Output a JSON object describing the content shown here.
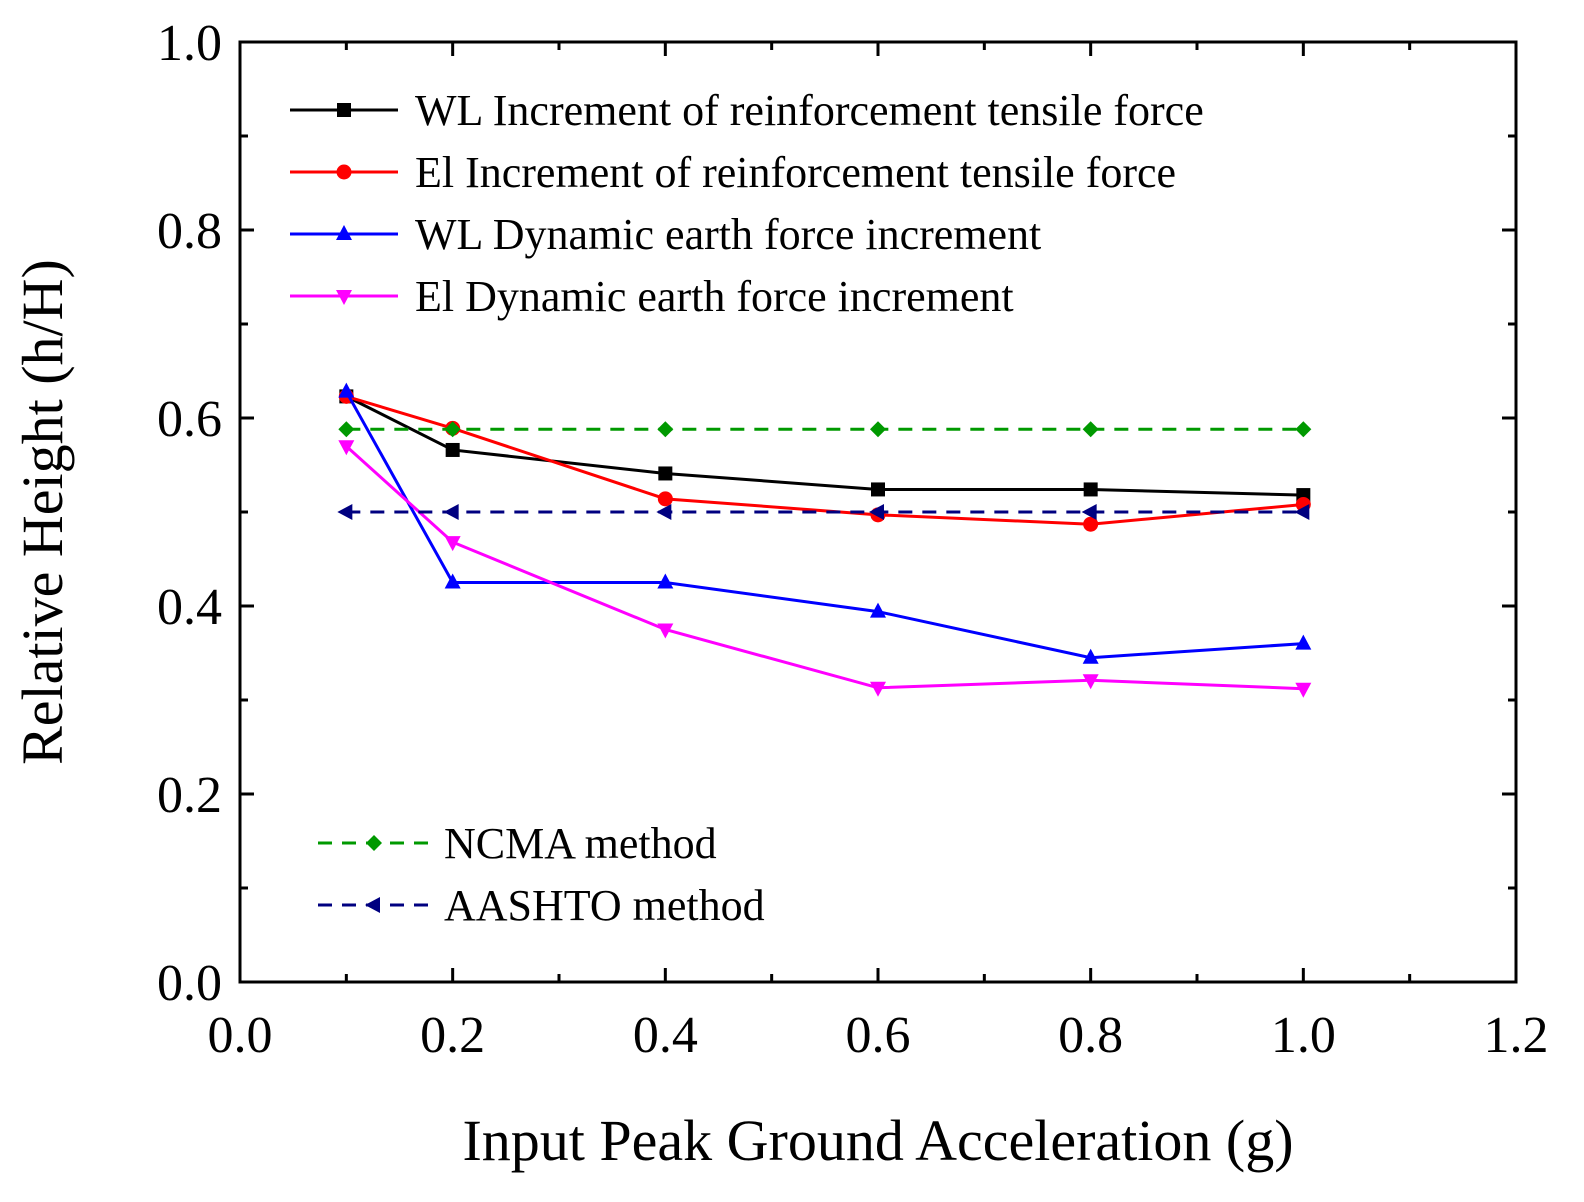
{
  "chart_data": {
    "type": "line",
    "title": "",
    "xlabel": "Input Peak Ground Acceleration  (g)",
    "ylabel": "Relative Height  (h/H)",
    "xlim": [
      0.0,
      1.2
    ],
    "ylim": [
      0.0,
      1.0
    ],
    "xticks": [
      "0.0",
      "0.2",
      "0.4",
      "0.6",
      "0.8",
      "1.0",
      "1.2"
    ],
    "yticks": [
      "0.0",
      "0.2",
      "0.4",
      "0.6",
      "0.8",
      "1.0"
    ],
    "grid": false,
    "legend_position": "top-left",
    "series": [
      {
        "name": "WL Increment of reinforcement tensile force",
        "color": "#000000",
        "marker": "square",
        "dash": "solid",
        "x": [
          0.1,
          0.2,
          0.4,
          0.6,
          0.8,
          1.0
        ],
        "y": [
          0.623,
          0.566,
          0.541,
          0.524,
          0.524,
          0.518
        ]
      },
      {
        "name": "El  Increment of reinforcement tensile force",
        "color": "#ff0000",
        "marker": "circle",
        "dash": "solid",
        "x": [
          0.1,
          0.2,
          0.4,
          0.6,
          0.8,
          1.0
        ],
        "y": [
          0.623,
          0.589,
          0.514,
          0.497,
          0.487,
          0.508
        ]
      },
      {
        "name": "WL Dynamic earth force increment",
        "color": "#0000ff",
        "marker": "triangle-up",
        "dash": "solid",
        "x": [
          0.1,
          0.2,
          0.4,
          0.6,
          0.8,
          1.0
        ],
        "y": [
          0.628,
          0.425,
          0.425,
          0.394,
          0.345,
          0.36
        ]
      },
      {
        "name": "El Dynamic earth force increment",
        "color": "#ff00ff",
        "marker": "triangle-down",
        "dash": "solid",
        "x": [
          0.1,
          0.2,
          0.4,
          0.6,
          0.8,
          1.0
        ],
        "y": [
          0.57,
          0.468,
          0.375,
          0.313,
          0.321,
          0.312
        ]
      },
      {
        "name": "NCMA method",
        "color": "#009900",
        "marker": "diamond",
        "dash": "dashed",
        "x": [
          0.1,
          0.2,
          0.4,
          0.6,
          0.8,
          1.0
        ],
        "y": [
          0.588,
          0.588,
          0.588,
          0.588,
          0.588,
          0.588
        ]
      },
      {
        "name": "AASHTO method",
        "color": "#000080",
        "marker": "triangle-left",
        "dash": "dashed",
        "x": [
          0.1,
          0.2,
          0.4,
          0.6,
          0.8,
          1.0
        ],
        "y": [
          0.5,
          0.5,
          0.5,
          0.5,
          0.5,
          0.5
        ]
      }
    ]
  }
}
